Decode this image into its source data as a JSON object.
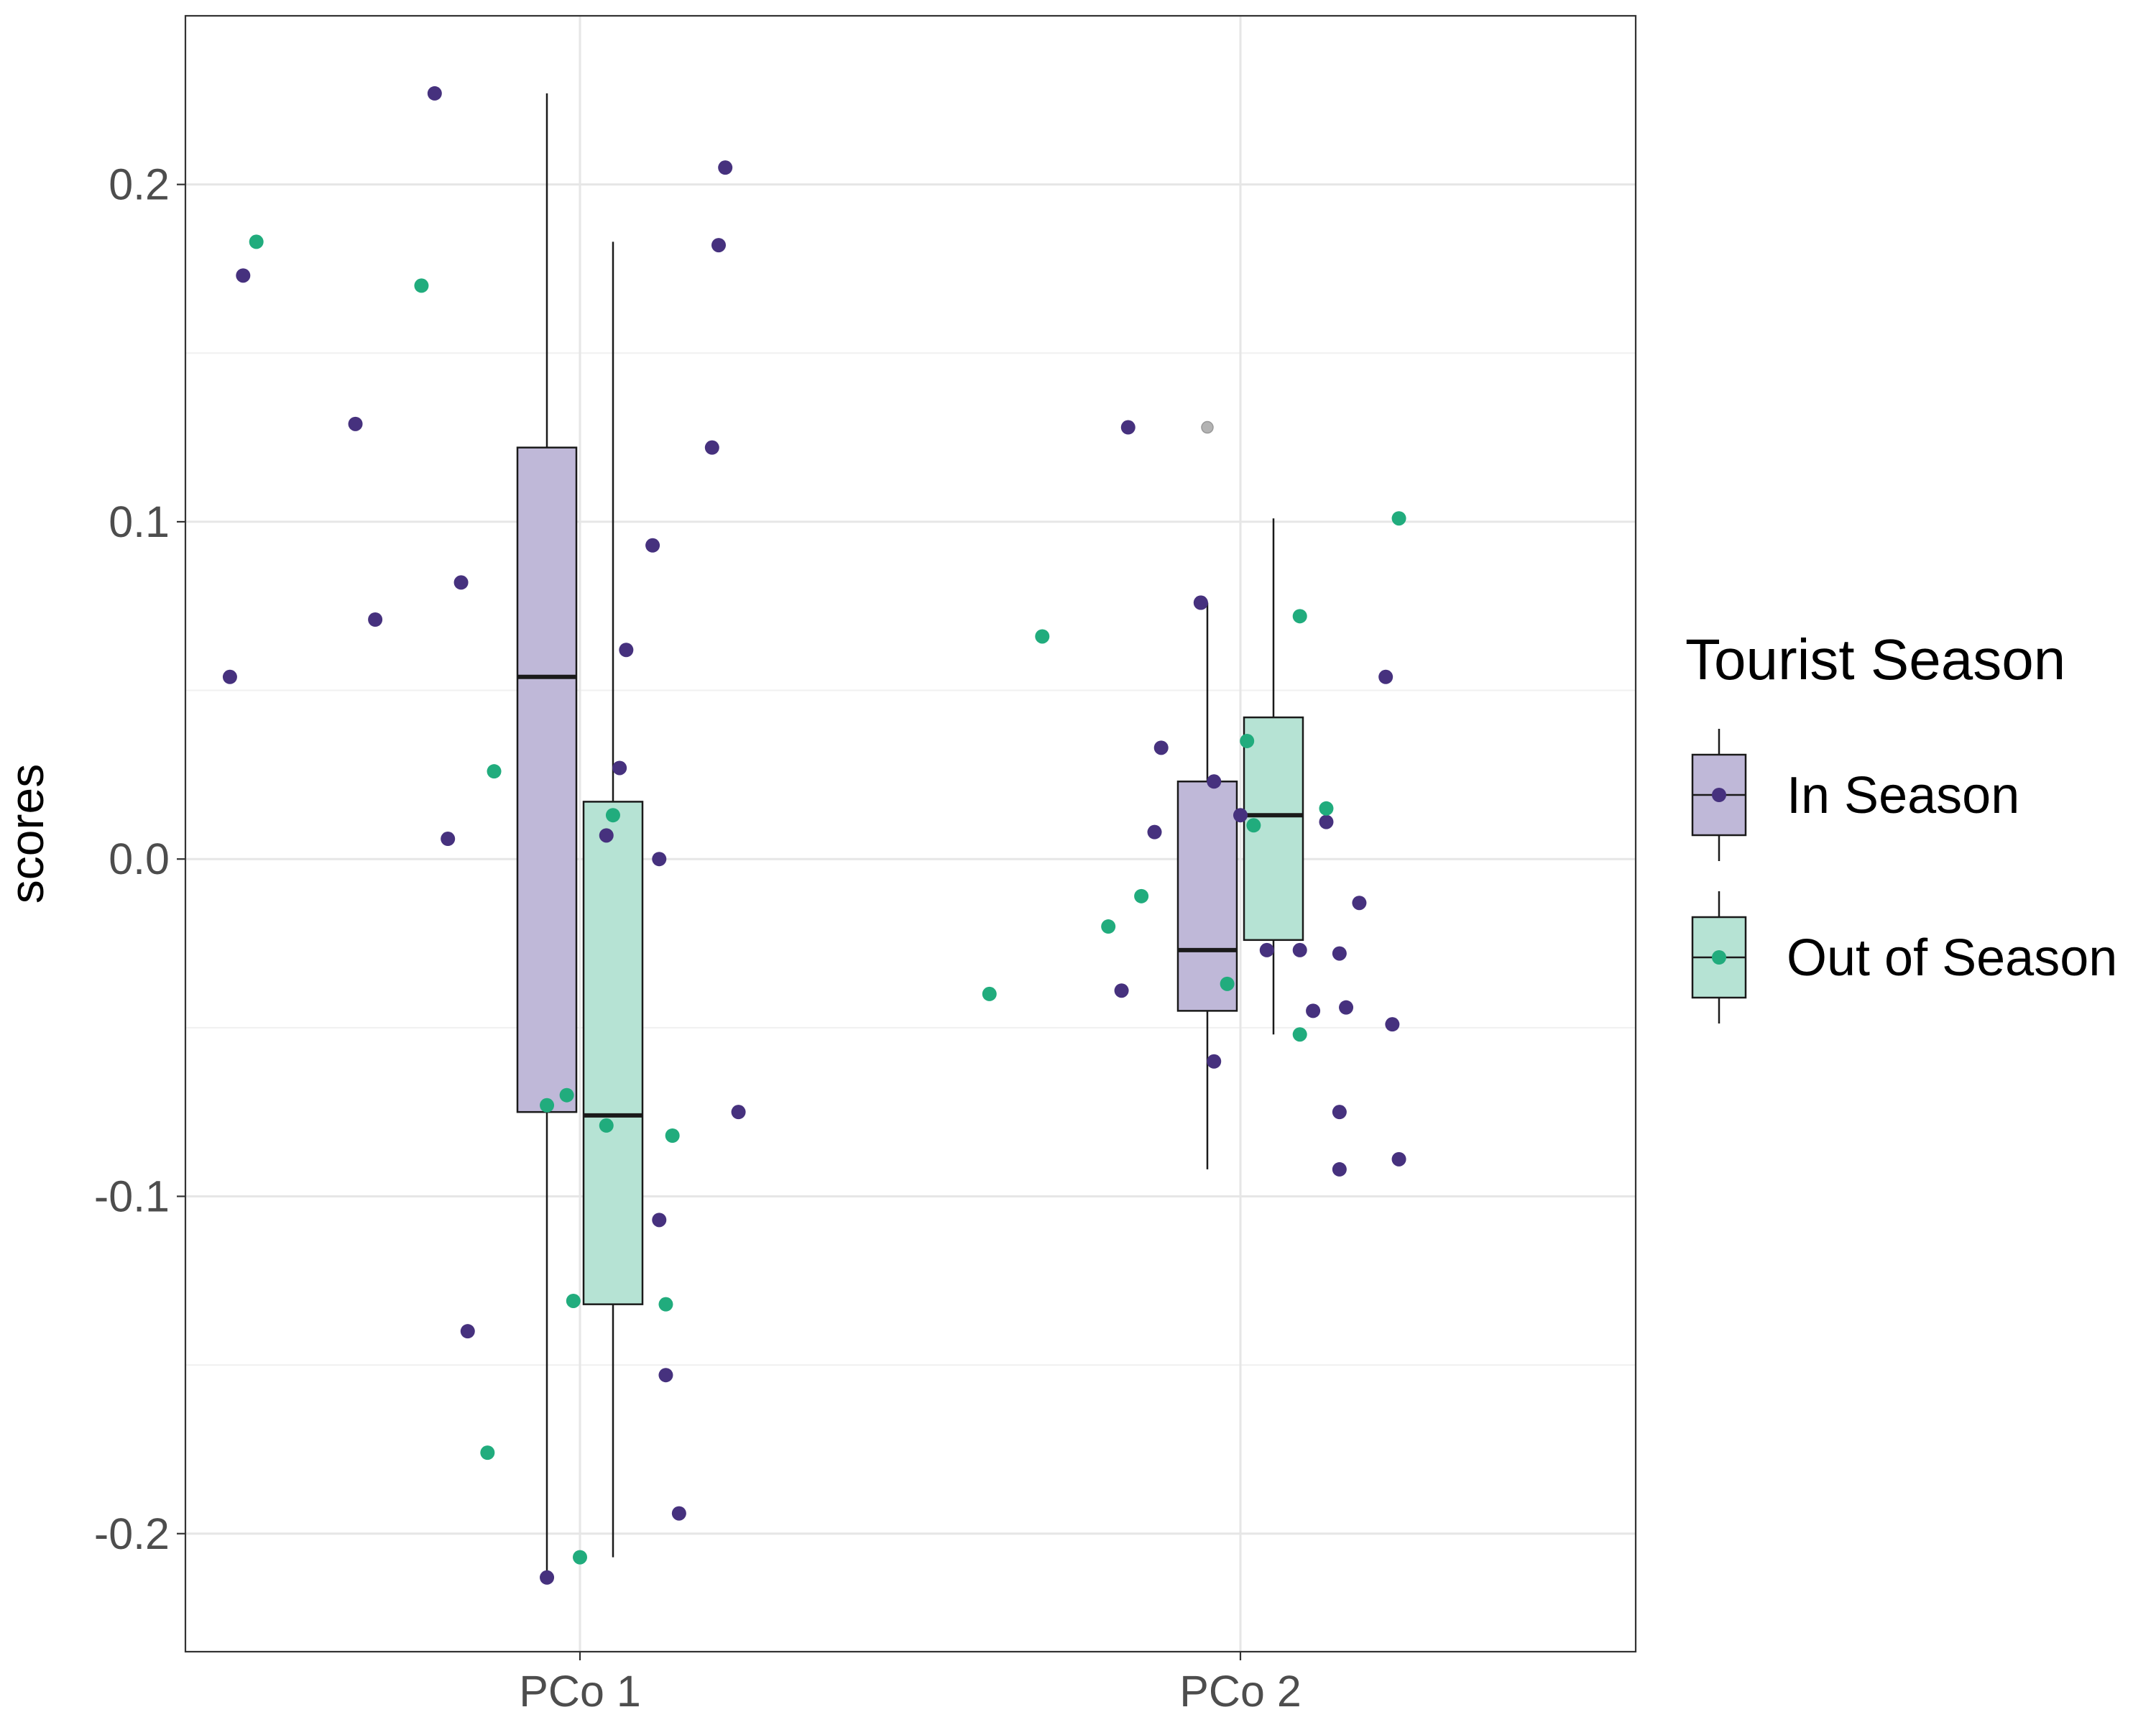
{
  "chart_data": {
    "type": "box",
    "categories": [
      "PCo 1",
      "PCo 2"
    ],
    "ylabel": "scores",
    "xlabel": "",
    "ylim": [
      -0.235,
      0.25
    ],
    "yticks": [
      -0.2,
      -0.1,
      0.0,
      0.1,
      0.2
    ],
    "ytick_labels": [
      "-0.2",
      "-0.1",
      "0.0",
      "0.1",
      "0.2"
    ],
    "grid": true,
    "legend": {
      "title": "Tourist Season",
      "position": "right",
      "entries": [
        {
          "label": "In Season",
          "fill": "#bfb8d8",
          "point": "#46317e"
        },
        {
          "label": "Out of Season",
          "fill": "#b6e3d4",
          "point": "#21ac7d"
        }
      ]
    },
    "series": [
      {
        "name": "In Season",
        "color": "#46317e",
        "fill": "#bfb8d8",
        "boxes": [
          {
            "category": "PCo 1",
            "whisker_low": -0.213,
            "q1": -0.075,
            "median": 0.054,
            "q3": 0.122,
            "whisker_high": 0.227,
            "outliers": []
          },
          {
            "category": "PCo 2",
            "whisker_low": -0.092,
            "q1": -0.045,
            "median": -0.027,
            "q3": 0.023,
            "whisker_high": 0.076,
            "outliers": [
              0.128
            ]
          }
        ],
        "points": [
          {
            "category": "PCo 1",
            "offset": -0.22,
            "y": 0.227
          },
          {
            "category": "PCo 1",
            "offset": -0.51,
            "y": 0.173
          },
          {
            "category": "PCo 1",
            "offset": -0.34,
            "y": 0.129
          },
          {
            "category": "PCo 1",
            "offset": -0.18,
            "y": 0.082
          },
          {
            "category": "PCo 1",
            "offset": -0.31,
            "y": 0.071
          },
          {
            "category": "PCo 1",
            "offset": -0.53,
            "y": 0.054
          },
          {
            "category": "PCo 1",
            "offset": -0.2,
            "y": 0.006
          },
          {
            "category": "PCo 1",
            "offset": -0.17,
            "y": -0.14
          },
          {
            "category": "PCo 1",
            "offset": -0.05,
            "y": -0.213
          },
          {
            "category": "PCo 1",
            "offset": 0.22,
            "y": 0.205
          },
          {
            "category": "PCo 1",
            "offset": 0.21,
            "y": 0.182
          },
          {
            "category": "PCo 1",
            "offset": 0.2,
            "y": 0.122
          },
          {
            "category": "PCo 1",
            "offset": 0.11,
            "y": 0.093
          },
          {
            "category": "PCo 1",
            "offset": 0.07,
            "y": 0.062
          },
          {
            "category": "PCo 1",
            "offset": 0.06,
            "y": 0.027
          },
          {
            "category": "PCo 1",
            "offset": 0.04,
            "y": 0.007
          },
          {
            "category": "PCo 1",
            "offset": 0.12,
            "y": 0.0
          },
          {
            "category": "PCo 1",
            "offset": 0.24,
            "y": -0.075
          },
          {
            "category": "PCo 1",
            "offset": 0.12,
            "y": -0.107
          },
          {
            "category": "PCo 1",
            "offset": 0.13,
            "y": -0.153
          },
          {
            "category": "PCo 1",
            "offset": 0.15,
            "y": -0.194
          },
          {
            "category": "PCo 2",
            "offset": -0.17,
            "y": 0.128
          },
          {
            "category": "PCo 2",
            "offset": -0.06,
            "y": 0.076
          },
          {
            "category": "PCo 2",
            "offset": -0.06,
            "y": 0.076
          },
          {
            "category": "PCo 2",
            "offset": -0.12,
            "y": 0.033
          },
          {
            "category": "PCo 2",
            "offset": -0.04,
            "y": 0.023
          },
          {
            "category": "PCo 2",
            "offset": -0.13,
            "y": 0.008
          },
          {
            "category": "PCo 2",
            "offset": 0.0,
            "y": 0.013
          },
          {
            "category": "PCo 2",
            "offset": -0.18,
            "y": -0.039
          },
          {
            "category": "PCo 2",
            "offset": -0.04,
            "y": -0.06
          },
          {
            "category": "PCo 2",
            "offset": 0.13,
            "y": 0.011
          },
          {
            "category": "PCo 2",
            "offset": 0.18,
            "y": -0.013
          },
          {
            "category": "PCo 2",
            "offset": 0.04,
            "y": -0.027
          },
          {
            "category": "PCo 2",
            "offset": 0.09,
            "y": -0.027
          },
          {
            "category": "PCo 2",
            "offset": 0.15,
            "y": -0.028
          },
          {
            "category": "PCo 2",
            "offset": 0.11,
            "y": -0.045
          },
          {
            "category": "PCo 2",
            "offset": 0.16,
            "y": -0.044
          },
          {
            "category": "PCo 2",
            "offset": 0.23,
            "y": -0.049
          },
          {
            "category": "PCo 2",
            "offset": 0.15,
            "y": -0.075
          },
          {
            "category": "PCo 2",
            "offset": 0.15,
            "y": -0.092
          },
          {
            "category": "PCo 2",
            "offset": 0.24,
            "y": -0.089
          },
          {
            "category": "PCo 2",
            "offset": 0.22,
            "y": 0.054
          }
        ]
      },
      {
        "name": "Out of Season",
        "color": "#21ac7d",
        "fill": "#b6e3d4",
        "boxes": [
          {
            "category": "PCo 1",
            "whisker_low": -0.207,
            "q1": -0.132,
            "median": -0.076,
            "q3": 0.017,
            "whisker_high": 0.183,
            "outliers": []
          },
          {
            "category": "PCo 2",
            "whisker_low": -0.052,
            "q1": -0.024,
            "median": 0.013,
            "q3": 0.042,
            "whisker_high": 0.101,
            "outliers": []
          }
        ],
        "points": [
          {
            "category": "PCo 1",
            "offset": -0.49,
            "y": 0.183
          },
          {
            "category": "PCo 1",
            "offset": -0.24,
            "y": 0.17
          },
          {
            "category": "PCo 1",
            "offset": -0.13,
            "y": 0.026
          },
          {
            "category": "PCo 1",
            "offset": 0.05,
            "y": 0.013
          },
          {
            "category": "PCo 1",
            "offset": -0.02,
            "y": -0.07
          },
          {
            "category": "PCo 1",
            "offset": -0.05,
            "y": -0.073
          },
          {
            "category": "PCo 1",
            "offset": 0.04,
            "y": -0.079
          },
          {
            "category": "PCo 1",
            "offset": 0.14,
            "y": -0.082
          },
          {
            "category": "PCo 1",
            "offset": -0.01,
            "y": -0.131
          },
          {
            "category": "PCo 1",
            "offset": 0.13,
            "y": -0.132
          },
          {
            "category": "PCo 1",
            "offset": -0.14,
            "y": -0.176
          },
          {
            "category": "PCo 1",
            "offset": 0.0,
            "y": -0.207
          },
          {
            "category": "PCo 2",
            "offset": -0.3,
            "y": 0.066
          },
          {
            "category": "PCo 2",
            "offset": -0.15,
            "y": -0.011
          },
          {
            "category": "PCo 2",
            "offset": -0.2,
            "y": -0.02
          },
          {
            "category": "PCo 2",
            "offset": -0.38,
            "y": -0.04
          },
          {
            "category": "PCo 2",
            "offset": 0.01,
            "y": 0.035
          },
          {
            "category": "PCo 2",
            "offset": 0.02,
            "y": 0.01
          },
          {
            "category": "PCo 2",
            "offset": -0.02,
            "y": -0.037
          },
          {
            "category": "PCo 2",
            "offset": 0.24,
            "y": 0.101
          },
          {
            "category": "PCo 2",
            "offset": 0.09,
            "y": 0.072
          },
          {
            "category": "PCo 2",
            "offset": 0.13,
            "y": 0.015
          },
          {
            "category": "PCo 2",
            "offset": 0.09,
            "y": -0.052
          }
        ]
      }
    ]
  }
}
